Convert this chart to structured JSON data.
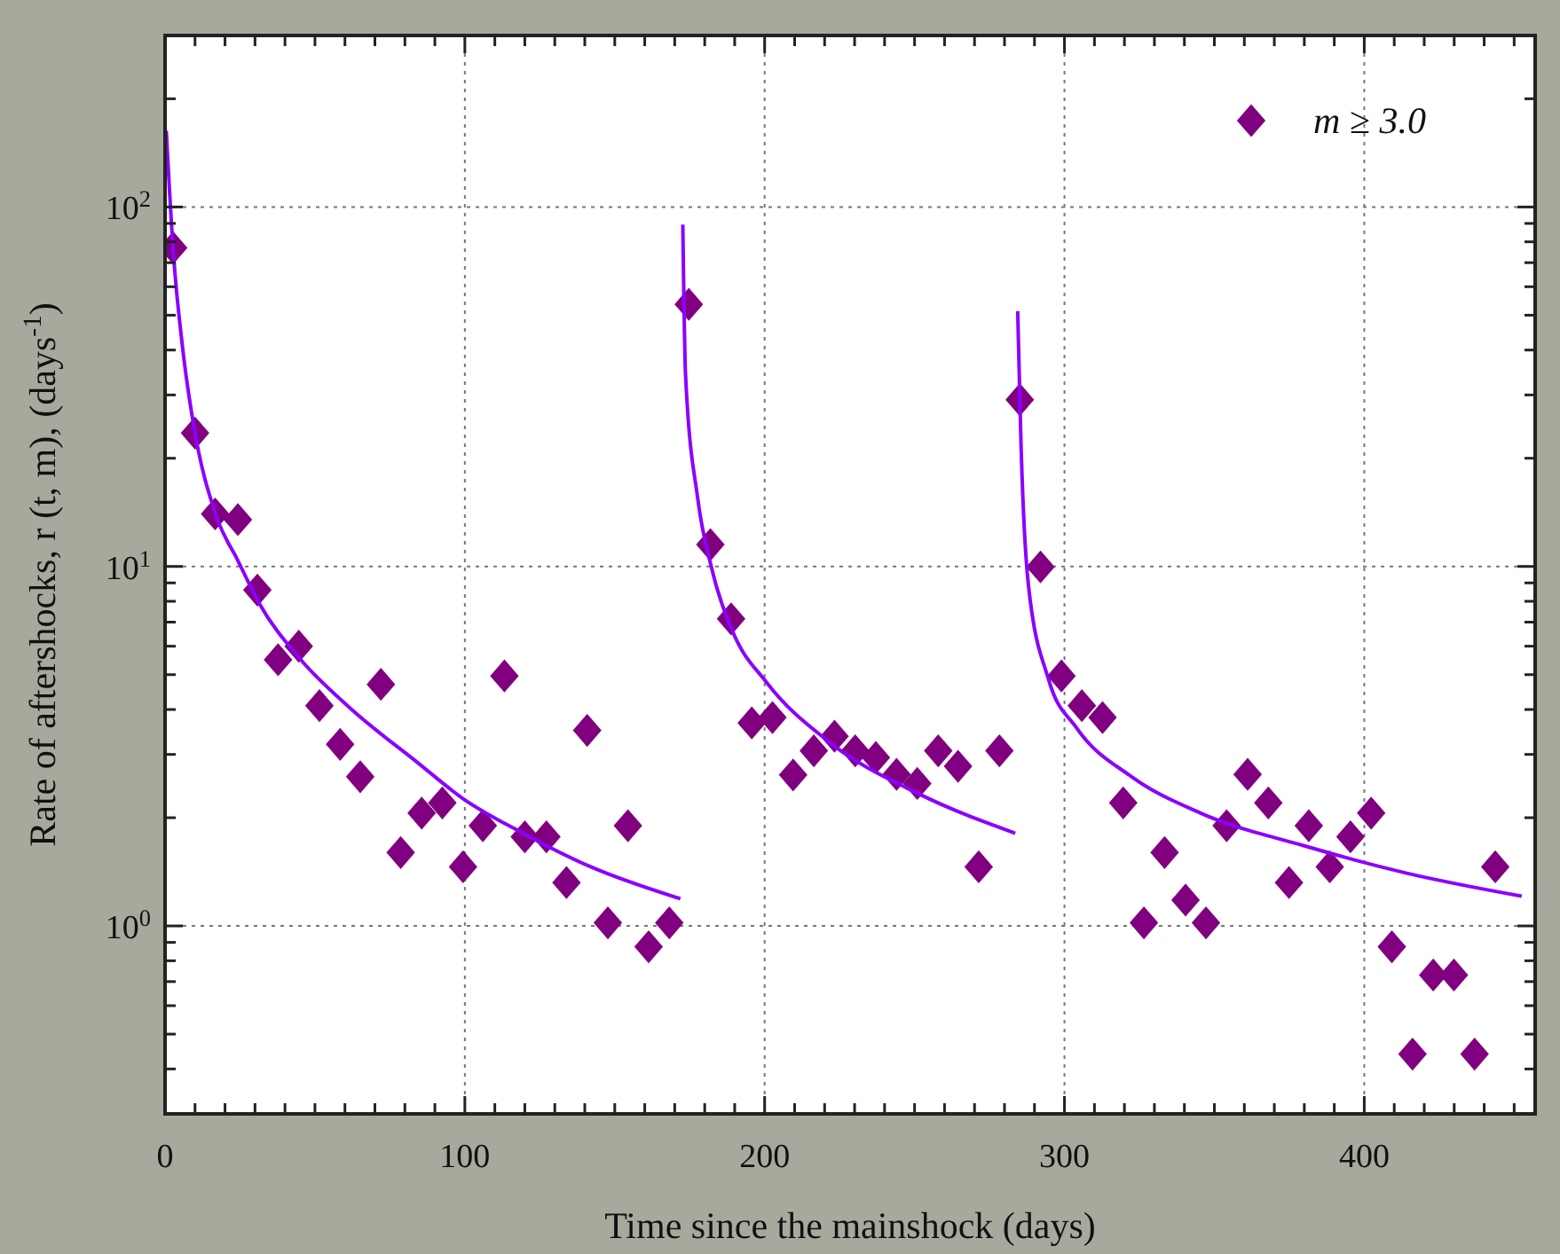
{
  "chart_data": {
    "type": "scatter",
    "xlabel": "Time since the mainshock (days)",
    "ylabel": "Rate of aftershocks, r (t, m), (days$^{-1}$)",
    "xlim": [
      0,
      457
    ],
    "ylim": [
      0.3,
      300
    ],
    "log": "y",
    "grid": true,
    "legend": "top right",
    "xticks": [
      0,
      {
        "value": 10,
        "label": null
      },
      {
        "value": 20,
        "label": null
      },
      {
        "value": 30,
        "label": null
      },
      {
        "value": 40,
        "label": null
      },
      {
        "value": 50,
        "label": null
      },
      {
        "value": 60,
        "label": null
      },
      {
        "value": 70,
        "label": null
      },
      {
        "value": 80,
        "label": null
      },
      {
        "value": 90,
        "label": null
      },
      100,
      {
        "value": 110,
        "label": null
      },
      {
        "value": 120,
        "label": null
      },
      {
        "value": 130,
        "label": null
      },
      {
        "value": 140,
        "label": null
      },
      {
        "value": 150,
        "label": null
      },
      {
        "value": 160,
        "label": null
      },
      {
        "value": 170,
        "label": null
      },
      {
        "value": 180,
        "label": null
      },
      {
        "value": 190,
        "label": null
      },
      200,
      {
        "value": 210,
        "label": null
      },
      {
        "value": 220,
        "label": null
      },
      {
        "value": 230,
        "label": null
      },
      {
        "value": 240,
        "label": null
      },
      {
        "value": 250,
        "label": null
      },
      {
        "value": 260,
        "label": null
      },
      {
        "value": 270,
        "label": null
      },
      {
        "value": 280,
        "label": null
      },
      {
        "value": 290,
        "label": null
      },
      300,
      {
        "value": 310,
        "label": null
      },
      {
        "value": 320,
        "label": null
      },
      {
        "value": 330,
        "label": null
      },
      {
        "value": 340,
        "label": null
      },
      {
        "value": 350,
        "label": null
      },
      {
        "value": 360,
        "label": null
      },
      {
        "value": 370,
        "label": null
      },
      {
        "value": 380,
        "label": null
      },
      {
        "value": 390,
        "label": null
      },
      400,
      {
        "value": 410,
        "label": null
      },
      {
        "value": 420,
        "label": null
      },
      {
        "value": 430,
        "label": null
      },
      {
        "value": 440,
        "label": null
      },
      {
        "value": 450,
        "label": null
      }
    ],
    "yticks": [
      {
        "value": 0.3,
        "label": null
      },
      {
        "value": 0.4,
        "label": null
      },
      {
        "value": 0.5,
        "label": null
      },
      {
        "value": 0.6,
        "label": null
      },
      {
        "value": 0.7,
        "label": null
      },
      {
        "value": 0.8,
        "label": null
      },
      {
        "value": 0.9,
        "label": null
      },
      {
        "value": 1,
        "label": "10$^{0}$"
      },
      {
        "value": 2,
        "label": null
      },
      {
        "value": 3,
        "label": null
      },
      {
        "value": 4,
        "label": null
      },
      {
        "value": 5,
        "label": null
      },
      {
        "value": 6,
        "label": null
      },
      {
        "value": 7,
        "label": null
      },
      {
        "value": 8,
        "label": null
      },
      {
        "value": 9,
        "label": null
      },
      {
        "value": 10,
        "label": "10$^{1}$"
      },
      {
        "value": 20,
        "label": null
      },
      {
        "value": 30,
        "label": null
      },
      {
        "value": 40,
        "label": null
      },
      {
        "value": 50,
        "label": null
      },
      {
        "value": 60,
        "label": null
      },
      {
        "value": 70,
        "label": null
      },
      {
        "value": 80,
        "label": null
      },
      {
        "value": 90,
        "label": null
      },
      {
        "value": 100,
        "label": "10$^{2}$"
      },
      {
        "value": 200,
        "label": null
      }
    ],
    "series": [
      {
        "name": "m ≥ 3.0",
        "marker": "diamond",
        "color": "#800080",
        "x": [
          2.7,
          10,
          16.7,
          24.3,
          30.8,
          37.7,
          44.6,
          51.5,
          58.4,
          65.1,
          72,
          78.6,
          85.6,
          92.5,
          99.4,
          106,
          113.2,
          120,
          127.2,
          133.9,
          140.8,
          147.7,
          154.4,
          161.3,
          168.2,
          174.7,
          181.9,
          188.8,
          195.7,
          202.6,
          209.5,
          216.4,
          223.3,
          230.2,
          237.1,
          244,
          250.9,
          257.9,
          264.5,
          271.4,
          278.3,
          285.1,
          292,
          299,
          305.8,
          312.7,
          319.6,
          326.5,
          333.4,
          340.4,
          347.2,
          354.1,
          361.1,
          368,
          374.9,
          381.5,
          388.5,
          395.4,
          402.3,
          409.2,
          416.1,
          423,
          429.9,
          436.8,
          443.7
        ],
        "values": [
          77,
          23.5,
          14,
          13.5,
          8.6,
          5.5,
          6.0,
          4.1,
          3.2,
          2.6,
          4.7,
          1.6,
          2.06,
          2.2,
          1.46,
          1.9,
          4.96,
          1.77,
          1.77,
          1.32,
          3.5,
          1.02,
          1.9,
          0.875,
          1.02,
          53.6,
          11.5,
          7.15,
          3.67,
          3.8,
          2.63,
          3.07,
          3.37,
          3.07,
          2.94,
          2.64,
          2.49,
          3.07,
          2.78,
          1.46,
          3.07,
          29.1,
          9.97,
          4.96,
          4.1,
          3.8,
          2.2,
          1.02,
          1.6,
          1.18,
          1.02,
          1.9,
          2.64,
          2.2,
          1.32,
          1.9,
          1.46,
          1.77,
          2.06,
          0.875,
          0.44,
          0.73,
          0.73,
          0.44,
          1.46
        ]
      },
      {
        "type": "line",
        "color": "#8b00ff",
        "x": [
          0.4,
          2.7,
          6.1,
          10,
          16.7,
          24.5,
          31.4,
          45.3,
          61.4,
          84.4,
          99.4,
          118.9,
          142,
          171.9
        ],
        "values": [
          163,
          76,
          39,
          23.5,
          14.1,
          10.3,
          7.9,
          5.5,
          4.06,
          2.84,
          2.26,
          1.82,
          1.46,
          1.19
        ]
      },
      {
        "type": "line",
        "color": "#8b00ff",
        "x": [
          172.7,
          173.6,
          177.7,
          182.3,
          189.2,
          200.7,
          221.5,
          251.4,
          283.6
        ],
        "values": [
          89.3,
          34.3,
          15.4,
          9.9,
          6.63,
          4.75,
          3.25,
          2.33,
          1.81
        ]
      },
      {
        "type": "line",
        "color": "#8b00ff",
        "x": [
          284.4,
          285.5,
          287.9,
          294.7,
          304,
          322.4,
          345.4,
          380,
          414.5,
          452.5
        ],
        "values": [
          51.3,
          22,
          9.0,
          4.85,
          3.56,
          2.6,
          2.06,
          1.67,
          1.4,
          1.21
        ]
      }
    ]
  }
}
